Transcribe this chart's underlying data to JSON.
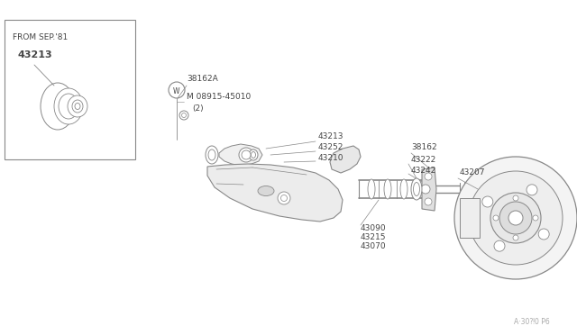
{
  "bg_color": "#ffffff",
  "line_color": "#888888",
  "text_color": "#444444",
  "title_bottom": "A·30⁈0 P6",
  "box_label": "FROM SEP.'81",
  "box_part": "43213",
  "fig_w": 6.4,
  "fig_h": 3.72,
  "dpi": 100
}
